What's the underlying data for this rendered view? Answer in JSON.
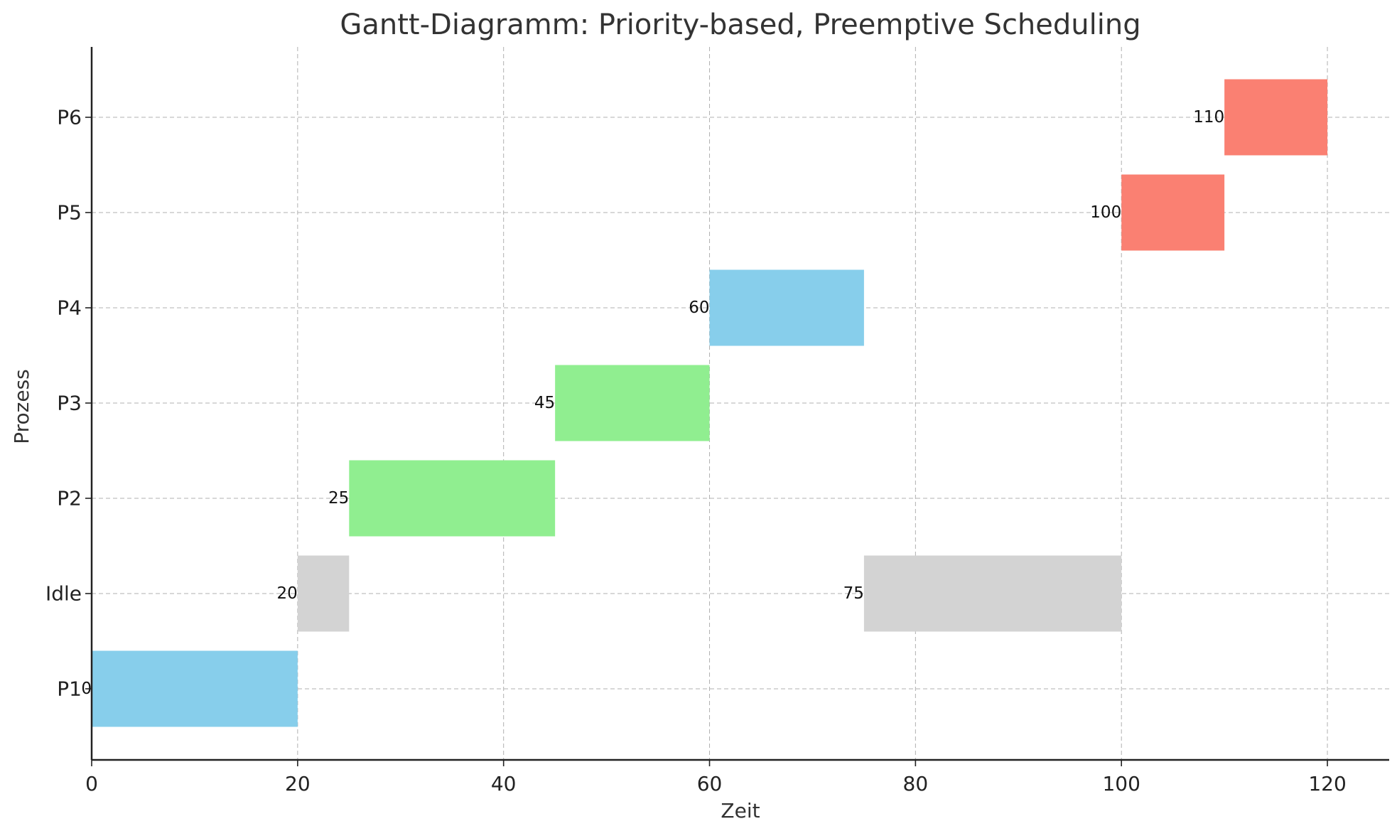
{
  "chart_data": {
    "type": "gantt",
    "title": "Gantt-Diagramm: Priority-based, Preemptive Scheduling",
    "xlabel": "Zeit",
    "ylabel": "Prozess",
    "xlim": [
      0,
      126
    ],
    "xticks": [
      0,
      20,
      40,
      60,
      80,
      100,
      120
    ],
    "categories": [
      "P1",
      "Idle",
      "P2",
      "P3",
      "P4",
      "P5",
      "P6"
    ],
    "grid": true,
    "bars": [
      {
        "process": "P1",
        "start": 0,
        "duration": 20,
        "label": "0",
        "color": "#87ceeb"
      },
      {
        "process": "Idle",
        "start": 20,
        "duration": 5,
        "label": "20",
        "color": "#d3d3d3"
      },
      {
        "process": "P2",
        "start": 25,
        "duration": 20,
        "label": "25",
        "color": "#90ee90"
      },
      {
        "process": "P3",
        "start": 45,
        "duration": 15,
        "label": "45",
        "color": "#90ee90"
      },
      {
        "process": "P4",
        "start": 60,
        "duration": 15,
        "label": "60",
        "color": "#87ceeb"
      },
      {
        "process": "Idle",
        "start": 75,
        "duration": 25,
        "label": "75",
        "color": "#d3d3d3"
      },
      {
        "process": "P5",
        "start": 100,
        "duration": 10,
        "label": "100",
        "color": "#fa8072"
      },
      {
        "process": "P6",
        "start": 110,
        "duration": 10,
        "label": "110",
        "color": "#fa8072"
      }
    ]
  }
}
